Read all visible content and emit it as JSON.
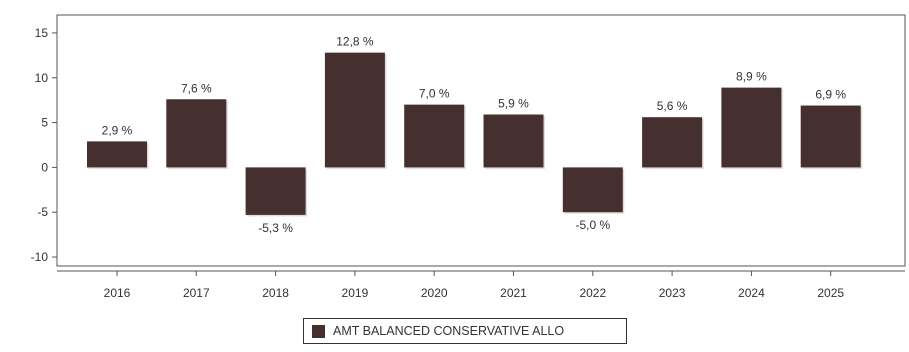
{
  "chart_data": {
    "type": "bar",
    "categories": [
      "2016",
      "2017",
      "2018",
      "2019",
      "2020",
      "2021",
      "2022",
      "2023",
      "2024",
      "2025"
    ],
    "series": [
      {
        "name": "AMT BALANCED CONSERVATIVE ALLO",
        "values": [
          2.9,
          7.6,
          -5.3,
          12.8,
          7.0,
          5.9,
          -5.0,
          5.6,
          8.9,
          6.9
        ],
        "data_labels": [
          "2,9 %",
          "7,6 %",
          "-5,3 %",
          "12,8 %",
          "7,0 %",
          "5,9 %",
          "-5,0 %",
          "5,6 %",
          "8,9 %",
          "6,9 %"
        ],
        "color": "#46302f"
      }
    ],
    "title": "",
    "xlabel": "",
    "ylabel": "",
    "ylim": [
      -11,
      17
    ],
    "yticks": [
      -10,
      -5,
      0,
      5,
      10,
      15
    ],
    "grid": false,
    "legend_position": "bottom-center"
  },
  "legend": {
    "label": "AMT BALANCED CONSERVATIVE ALLO",
    "color": "#46302f"
  }
}
